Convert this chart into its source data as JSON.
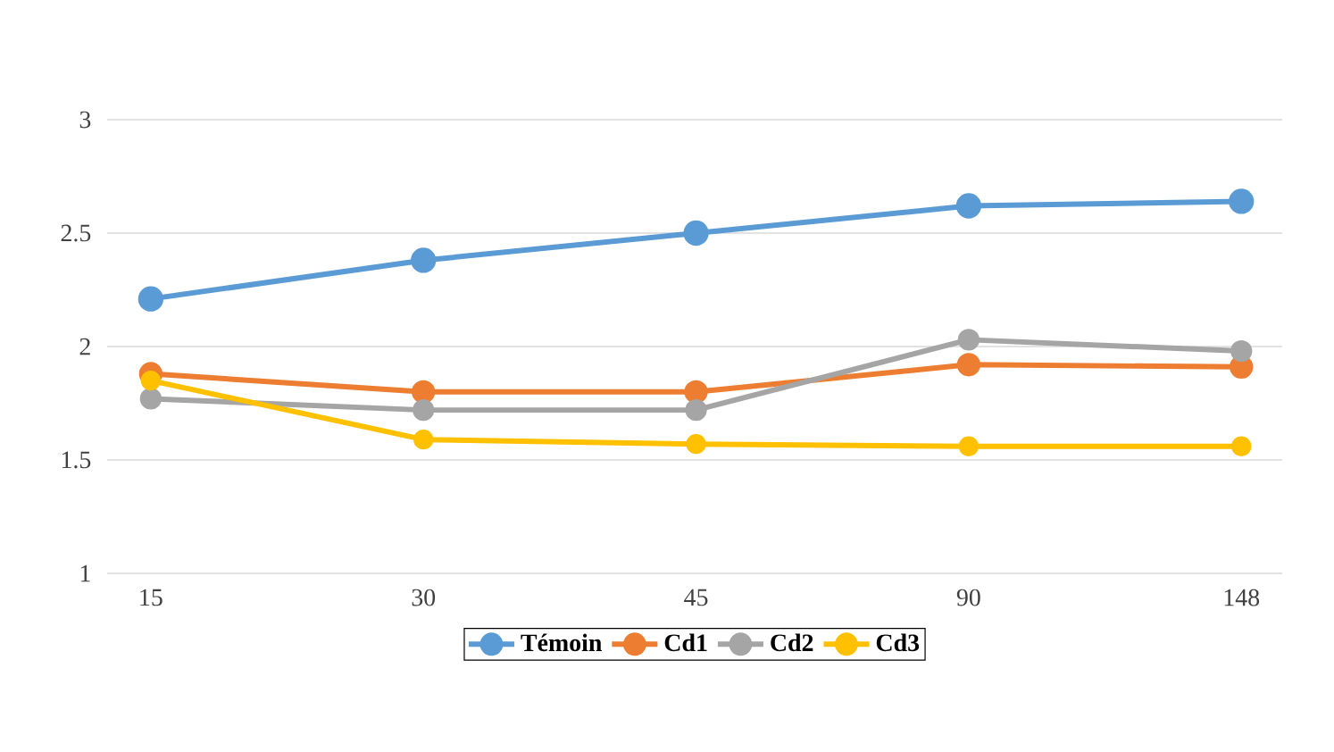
{
  "chart_data": {
    "type": "line",
    "categories": [
      "15",
      "30",
      "45",
      "90",
      "148"
    ],
    "series": [
      {
        "name": "Témoin",
        "color": "#5b9bd5",
        "values": [
          2.21,
          2.38,
          2.5,
          2.62,
          2.64
        ]
      },
      {
        "name": "Cd1",
        "color": "#ed7d31",
        "values": [
          1.88,
          1.8,
          1.8,
          1.92,
          1.91
        ]
      },
      {
        "name": "Cd2",
        "color": "#a5a5a5",
        "values": [
          1.77,
          1.72,
          1.72,
          2.03,
          1.98
        ]
      },
      {
        "name": "Cd3",
        "color": "#ffc000",
        "values": [
          1.85,
          1.59,
          1.57,
          1.56,
          1.56
        ]
      }
    ],
    "ylim": [
      1,
      3
    ],
    "yticks": [
      1,
      1.5,
      2,
      2.5,
      3
    ],
    "grid": "y",
    "legend": "bottom",
    "marker": "circle",
    "line_style": "solid"
  }
}
